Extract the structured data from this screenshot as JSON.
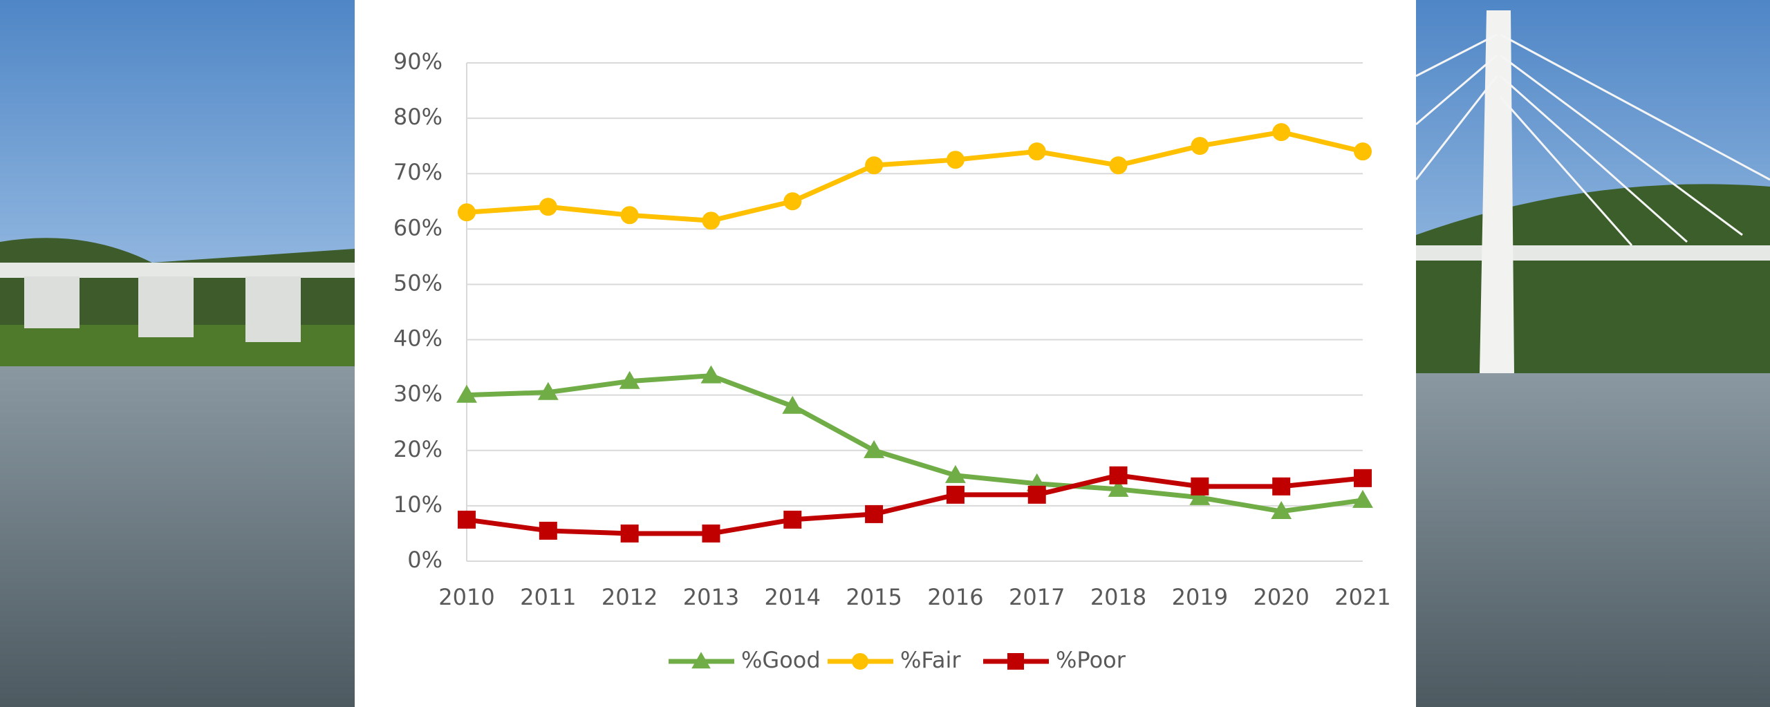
{
  "chart_data": {
    "type": "line",
    "categories": [
      "2010",
      "2011",
      "2012",
      "2013",
      "2014",
      "2015",
      "2016",
      "2017",
      "2018",
      "2019",
      "2020",
      "2021"
    ],
    "series": [
      {
        "name": "%Good",
        "color": "#70ad47",
        "marker": "triangle",
        "values": [
          30,
          30.5,
          32.5,
          33.5,
          28,
          20,
          15.5,
          14,
          13,
          11.5,
          9,
          11
        ]
      },
      {
        "name": "%Fair",
        "color": "#ffc000",
        "marker": "circle",
        "values": [
          63,
          64,
          62.5,
          61.5,
          65,
          71.5,
          72.5,
          74,
          71.5,
          75,
          77.5,
          74
        ]
      },
      {
        "name": "%Poor",
        "color": "#c00000",
        "marker": "square",
        "values": [
          7.5,
          5.5,
          5,
          5,
          7.5,
          8.5,
          12,
          12,
          15.5,
          13.5,
          13.5,
          15
        ]
      }
    ],
    "ylim": [
      0,
      90
    ],
    "yticks": [
      {
        "value": 0,
        "label": "0%"
      },
      {
        "value": 10,
        "label": "10%"
      },
      {
        "value": 20,
        "label": "20%"
      },
      {
        "value": 30,
        "label": "30%"
      },
      {
        "value": 40,
        "label": "40%"
      },
      {
        "value": 50,
        "label": "50%"
      },
      {
        "value": 60,
        "label": "60%"
      },
      {
        "value": 70,
        "label": "70%"
      },
      {
        "value": 80,
        "label": "80%"
      },
      {
        "value": 90,
        "label": "90%"
      }
    ],
    "grid": true,
    "legend": "bottom"
  }
}
